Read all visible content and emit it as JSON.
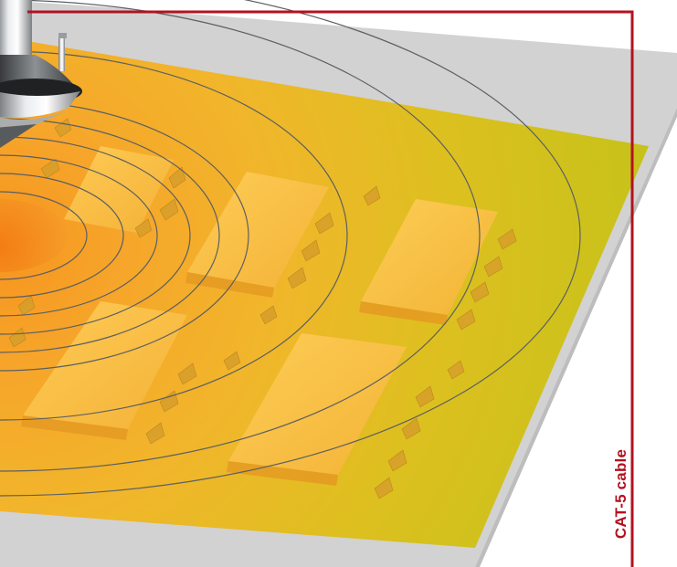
{
  "cable_label": "CAT-5 cable",
  "colors": {
    "cable": "#b3121f",
    "floor_outer": "#cfcfcf",
    "coverage_zone": "#c9c41d",
    "signal_core": "#f39a1b",
    "desk": "#f6b33a",
    "ring_stroke": "#5b5f63"
  },
  "icons": {
    "access_point": "ceiling-access-point-icon"
  }
}
